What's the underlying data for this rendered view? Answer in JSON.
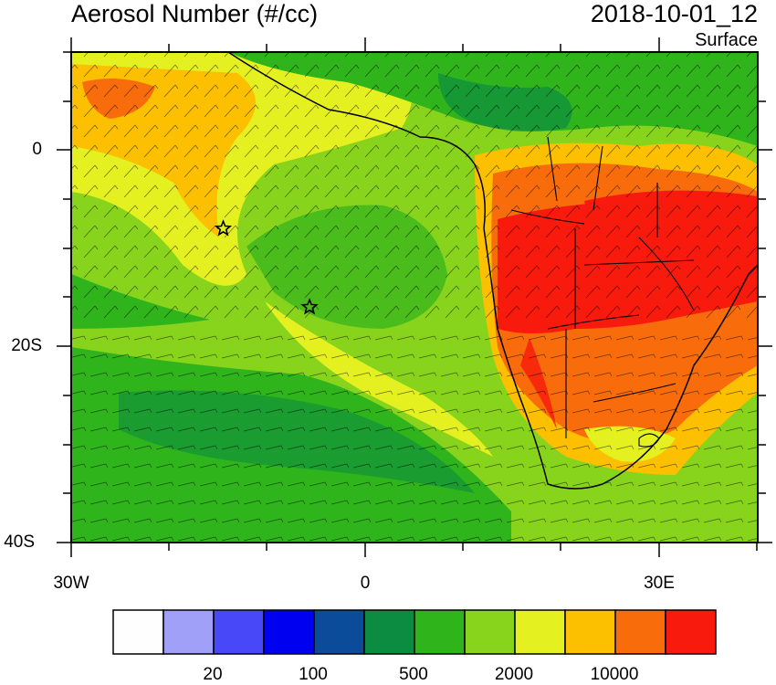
{
  "header": {
    "title": "Aerosol Number (#/cc)",
    "datetime": "2018-10-01_12",
    "level": "Surface"
  },
  "map": {
    "lat_ticks": [
      "0",
      "20S",
      "40S"
    ],
    "lon_ticks": [
      "30W",
      "0",
      "30E"
    ],
    "markers": [
      {
        "name": "star-marker-1",
        "lon": -14.5,
        "lat": -8.0
      },
      {
        "name": "star-marker-2",
        "lon": -5.7,
        "lat": -16.0
      }
    ]
  },
  "colorbar": {
    "colors": [
      "#fefefe",
      "#a0a0f8",
      "#4848f8",
      "#0000f0",
      "#0a4c9a",
      "#0c8c40",
      "#30b41c",
      "#88d41c",
      "#e4f020",
      "#fcc000",
      "#f86c0c",
      "#f81a0c"
    ],
    "labels": [
      "20",
      "100",
      "500",
      "2000",
      "10000"
    ]
  }
}
